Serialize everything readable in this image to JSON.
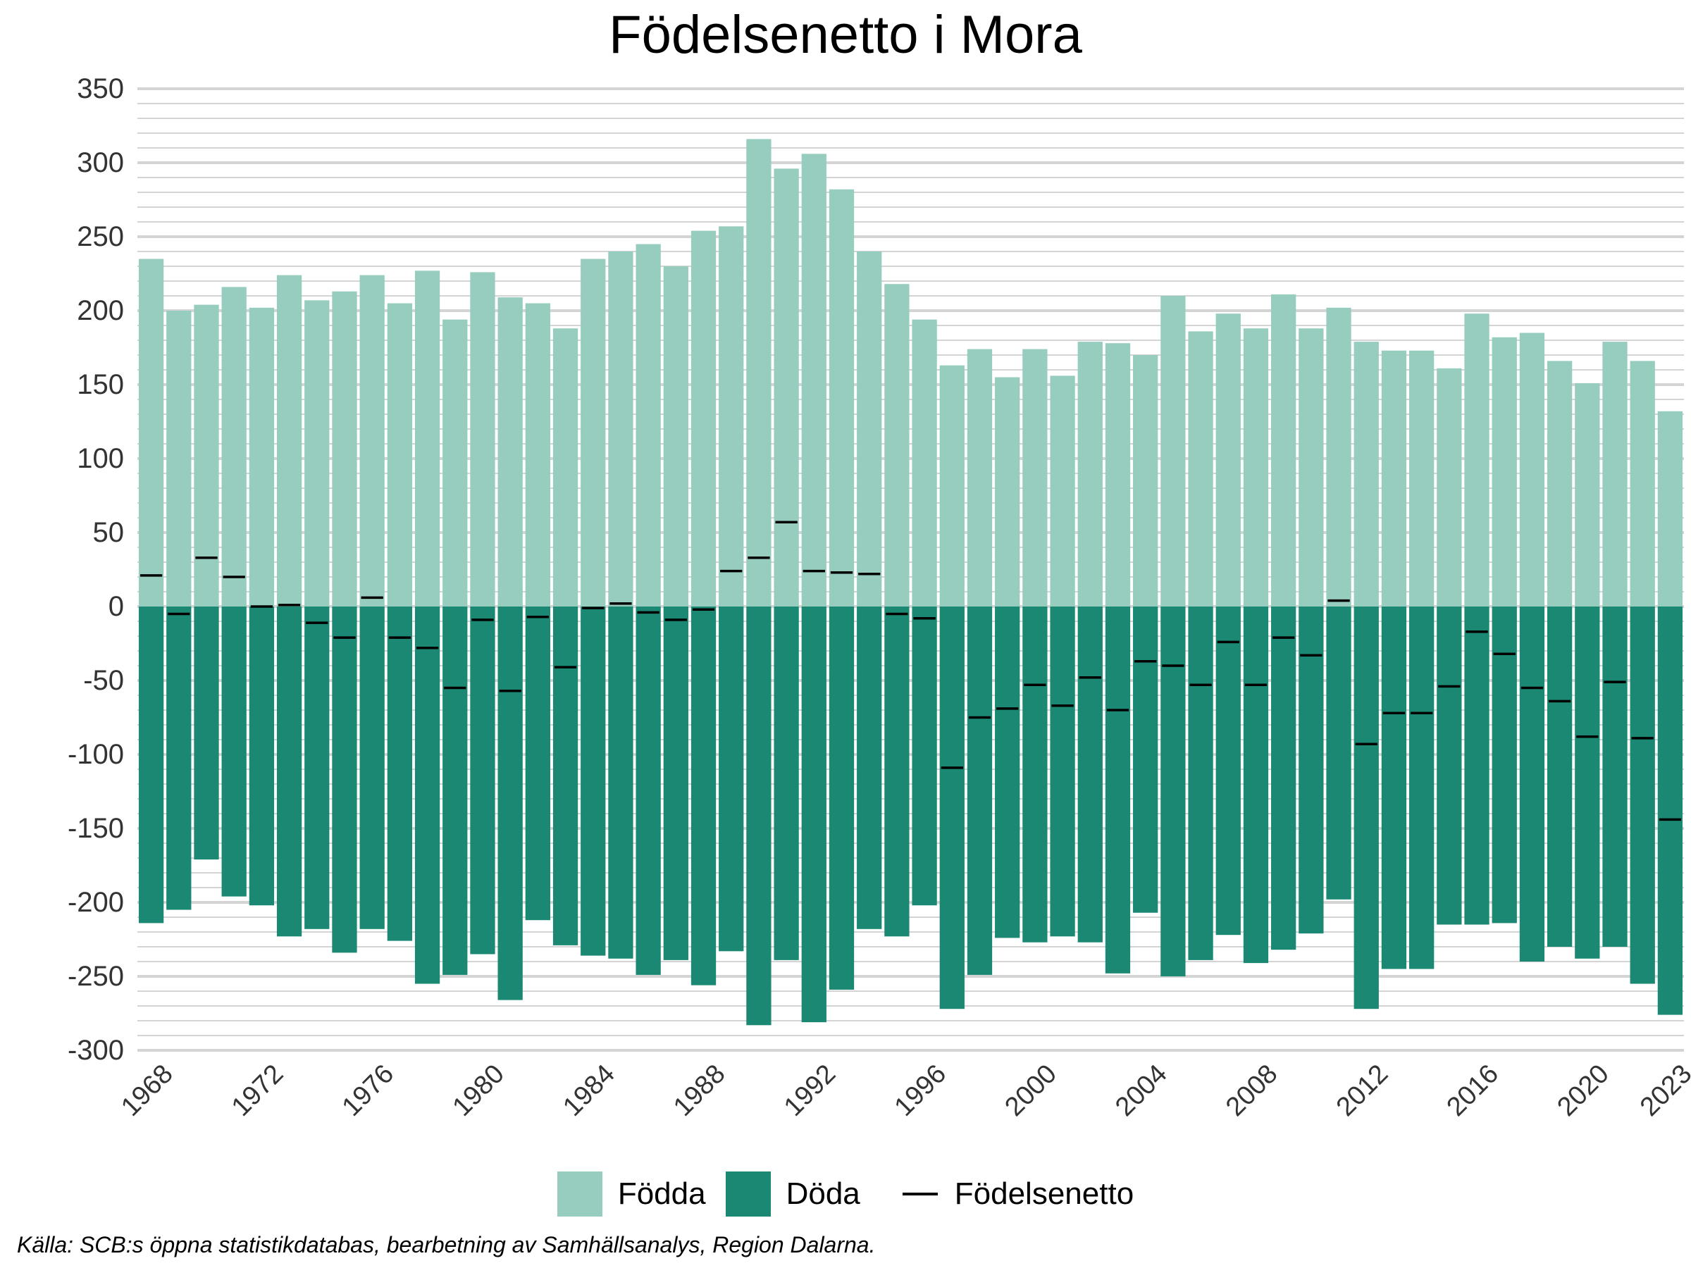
{
  "colors": {
    "fodda": "#96cdbf",
    "doda": "#1b8873",
    "netto": "#000000",
    "grid": "#d4d4d4"
  },
  "legend": {
    "fodda": "Födda",
    "doda": "Döda",
    "netto": "Födelsenetto"
  },
  "caption": "Källa: SCB:s öppna statistikdatabas, bearbetning av Samhällsanalys, Region Dalarna.",
  "chart_data": {
    "type": "bar",
    "title": "Födelsenetto i Mora",
    "xlabel": "",
    "ylabel": "",
    "ylim": [
      -300,
      350
    ],
    "yticks": [
      350,
      300,
      250,
      200,
      150,
      100,
      50,
      0,
      -50,
      -100,
      -150,
      -200,
      -250,
      -300
    ],
    "xtick_years": [
      1968,
      1972,
      1976,
      1980,
      1984,
      1988,
      1992,
      1996,
      2000,
      2004,
      2008,
      2012,
      2016,
      2020,
      2023
    ],
    "grid": true,
    "legend_position": "bottom",
    "categories": [
      1968,
      1969,
      1970,
      1971,
      1972,
      1973,
      1974,
      1975,
      1976,
      1977,
      1978,
      1979,
      1980,
      1981,
      1982,
      1983,
      1984,
      1985,
      1986,
      1987,
      1988,
      1989,
      1990,
      1991,
      1992,
      1993,
      1994,
      1995,
      1996,
      1997,
      1998,
      1999,
      2000,
      2001,
      2002,
      2003,
      2004,
      2005,
      2006,
      2007,
      2008,
      2009,
      2010,
      2011,
      2012,
      2013,
      2014,
      2015,
      2016,
      2017,
      2018,
      2019,
      2020,
      2021,
      2022,
      2023
    ],
    "series": [
      {
        "name": "Födda",
        "values": [
          235,
          200,
          204,
          216,
          202,
          224,
          207,
          213,
          224,
          205,
          227,
          194,
          226,
          209,
          205,
          188,
          235,
          240,
          245,
          230,
          254,
          257,
          316,
          296,
          306,
          282,
          240,
          218,
          194,
          163,
          174,
          155,
          174,
          156,
          179,
          178,
          170,
          210,
          186,
          198,
          188,
          211,
          188,
          202,
          179,
          173,
          173,
          161,
          198,
          182,
          185,
          166,
          151,
          179,
          166,
          132
        ]
      },
      {
        "name": "Döda",
        "values": [
          -214,
          -205,
          -171,
          -196,
          -202,
          -223,
          -218,
          -234,
          -218,
          -226,
          -255,
          -249,
          -235,
          -266,
          -212,
          -229,
          -236,
          -238,
          -249,
          -239,
          -256,
          -233,
          -283,
          -239,
          -281,
          -259,
          -218,
          -223,
          -202,
          -272,
          -249,
          -224,
          -227,
          -223,
          -227,
          -248,
          -207,
          -250,
          -239,
          -222,
          -241,
          -232,
          -221,
          -198,
          -272,
          -245,
          -245,
          -215,
          -215,
          -214,
          -240,
          -230,
          -238,
          -230,
          -255,
          -276
        ]
      },
      {
        "name": "Födelsenetto",
        "values": [
          21,
          -5,
          33,
          20,
          0,
          1,
          -11,
          -21,
          6,
          -21,
          -28,
          -55,
          -9,
          -57,
          -7,
          -41,
          -1,
          2,
          -4,
          -9,
          -2,
          24,
          33,
          57,
          24,
          23,
          22,
          -5,
          -8,
          -109,
          -75,
          -69,
          -53,
          -67,
          -48,
          -70,
          -37,
          -40,
          -53,
          -24,
          -53,
          -21,
          -33,
          4,
          -93,
          -72,
          -72,
          -54,
          -17,
          -32,
          -55,
          -64,
          -88,
          -51,
          -89,
          -144
        ]
      }
    ]
  }
}
